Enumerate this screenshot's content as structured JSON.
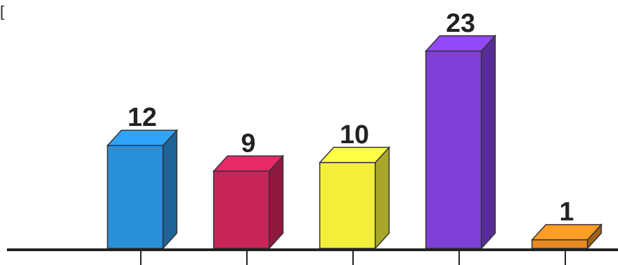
{
  "corner_mark": "[",
  "chart_data": {
    "type": "bar",
    "style": "3d",
    "title": "",
    "xlabel": "",
    "ylabel": "",
    "grid": false,
    "legend": "none",
    "categories": [
      "",
      "",
      "",
      "",
      ""
    ],
    "values": [
      12,
      9,
      10,
      23,
      1
    ],
    "data_labels": [
      "12",
      "9",
      "10",
      "23",
      "1"
    ],
    "colors": [
      "#2a8fd9",
      "#c9245a",
      "#f2ee3a",
      "#7e3fd6",
      "#e8891f"
    ],
    "ylim": [
      0,
      25
    ]
  }
}
